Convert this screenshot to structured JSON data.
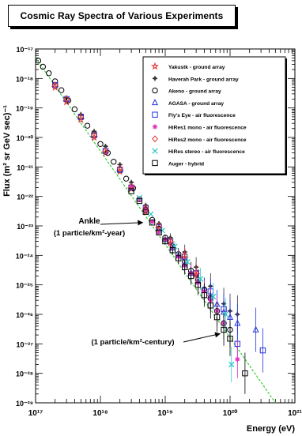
{
  "chart_data": {
    "type": "scatter",
    "title": "Cosmic Ray Spectra of Various Experiments",
    "xlabel": "Energy (eV)",
    "ylabel": "Flux (m² sr GeV sec)⁻¹",
    "x_scale": "log",
    "y_scale": "log",
    "xlim": [
      1e+17,
      1e+21
    ],
    "ylim": [
      1e-29,
      1e-17
    ],
    "x_tick_labels": [
      "10¹⁷",
      "10¹⁸",
      "10¹⁹",
      "10²⁰",
      "10²¹"
    ],
    "y_tick_labels": [
      "10⁻¹⁷",
      "10⁻¹⁸",
      "10⁻¹⁹",
      "10⁻²⁰",
      "10⁻²¹",
      "10⁻²²",
      "10⁻²³",
      "10⁻²⁴",
      "10⁻²⁵",
      "10⁻²⁶",
      "10⁻²⁷",
      "10⁻²⁸",
      "10⁻²⁹"
    ],
    "legend_position": "top-right",
    "grid": false,
    "reference_line": {
      "style": "dashed",
      "color": "#33cc33",
      "points": [
        [
          1e+17,
          5e-18
        ],
        [
          5e+20,
          1e-29
        ]
      ]
    },
    "annotations": [
      {
        "lines": [
          "Ankle",
          "(1 particle/km²-year)"
        ],
        "arrow_to": [
          4.5e+18,
          1.3e-23
        ]
      },
      {
        "lines": [
          "(1 particle/km²-century)"
        ],
        "arrow_to": [
          7e+19,
          2.2e-27
        ]
      }
    ],
    "series": [
      {
        "name": "Yakustk - ground array",
        "marker": "star",
        "color": "#e03030",
        "points": [
          [
            2e+17,
            5e-19
          ],
          [
            3e+17,
            1.6e-19
          ],
          [
            5e+17,
            4e-20
          ],
          [
            8e+17,
            1e-20
          ],
          [
            1.2e+18,
            3e-21
          ],
          [
            2e+18,
            7e-22
          ],
          [
            3e+18,
            1.8e-22
          ],
          [
            5e+18,
            3e-23
          ],
          [
            8e+18,
            8e-24
          ],
          [
            1.2e+19,
            2.6e-24
          ],
          [
            2e+19,
            8e-25
          ],
          [
            3e+19,
            2.2e-25
          ],
          [
            5e+19,
            4e-26
          ]
        ]
      },
      {
        "name": "Haverah Park - ground array",
        "marker": "cross",
        "color": "#333333",
        "points": [
          [
            3e+17,
            2.2e-19
          ],
          [
            5e+17,
            6e-20
          ],
          [
            8e+17,
            1.6e-20
          ],
          [
            1.2e+18,
            5e-21
          ],
          [
            2e+18,
            1.2e-21
          ],
          [
            3e+18,
            3e-22
          ],
          [
            5e+18,
            5e-23
          ],
          [
            8e+18,
            1.2e-23
          ],
          [
            1.2e+19,
            4e-24
          ],
          [
            2e+19,
            1.3e-24
          ],
          [
            3e+19,
            4e-25
          ],
          [
            5e+19,
            9e-26
          ],
          [
            8e+19,
            2.3e-26
          ],
          [
            1e+20,
            1.3e-26
          ],
          [
            1.3e+20,
            1e-26
          ]
        ]
      },
      {
        "name": "Akeno - ground array",
        "marker": "circle",
        "color": "#000000",
        "points": [
          [
            1.1e+17,
            4e-18
          ],
          [
            1.3e+17,
            2.5e-18
          ],
          [
            1.6e+17,
            1.5e-18
          ],
          [
            2e+17,
            8e-19
          ],
          [
            2.5e+17,
            4e-19
          ],
          [
            3.2e+17,
            1.8e-19
          ],
          [
            4e+17,
            9e-20
          ],
          [
            5e+17,
            5e-20
          ],
          [
            6.3e+17,
            2.5e-20
          ],
          [
            8e+17,
            1.2e-20
          ],
          [
            1e+18,
            6e-21
          ],
          [
            1.3e+18,
            3e-21
          ],
          [
            1.6e+18,
            1.5e-21
          ],
          [
            2e+18,
            8e-22
          ],
          [
            2.5e+18,
            4e-22
          ],
          [
            3.2e+18,
            1.9e-22
          ],
          [
            4e+18,
            8e-23
          ],
          [
            5e+18,
            3.5e-23
          ],
          [
            6.3e+18,
            1.6e-23
          ],
          [
            8e+18,
            8e-24
          ],
          [
            1e+19,
            4e-24
          ],
          [
            1.3e+19,
            2e-24
          ],
          [
            1.6e+19,
            1.1e-24
          ],
          [
            2e+19,
            6e-25
          ],
          [
            2.5e+19,
            3e-25
          ],
          [
            3.2e+19,
            1.5e-25
          ],
          [
            4e+19,
            7e-26
          ],
          [
            5e+19,
            3.5e-26
          ],
          [
            6.3e+19,
            1.3e-26
          ],
          [
            8e+19,
            5e-27
          ],
          [
            1e+20,
            3e-27
          ]
        ]
      },
      {
        "name": "AGASA - ground array",
        "marker": "triangle",
        "color": "#2233dd",
        "points": [
          [
            1e+19,
            3.5e-24
          ],
          [
            1.3e+19,
            1.8e-24
          ],
          [
            1.6e+19,
            1e-24
          ],
          [
            2e+19,
            5e-25
          ],
          [
            2.5e+19,
            2.5e-25
          ],
          [
            3.2e+19,
            1.3e-25
          ],
          [
            4e+19,
            7e-26
          ],
          [
            5e+19,
            4e-26
          ],
          [
            6.3e+19,
            2.2e-26
          ],
          [
            8e+19,
            1.2e-26
          ],
          [
            1e+20,
            8e-27
          ],
          [
            1.3e+20,
            5e-27
          ],
          [
            2.5e+20,
            3e-27
          ]
        ]
      },
      {
        "name": "Fly's Eye - air fluorescence",
        "marker": "square-open",
        "color": "#2233dd",
        "points": [
          [
            2e+17,
            6e-19
          ],
          [
            3e+17,
            2e-19
          ],
          [
            5e+17,
            5e-20
          ],
          [
            8e+17,
            1.2e-20
          ],
          [
            1.2e+18,
            3.5e-21
          ],
          [
            2e+18,
            8e-22
          ],
          [
            3e+18,
            2e-22
          ],
          [
            5e+18,
            4e-23
          ],
          [
            8e+18,
            9e-24
          ],
          [
            1.2e+19,
            3e-24
          ],
          [
            2e+19,
            9e-25
          ],
          [
            3e+19,
            2.5e-25
          ],
          [
            5e+19,
            6e-26
          ],
          [
            8e+19,
            1.5e-26
          ],
          [
            1.3e+20,
            1e-27
          ],
          [
            3.2e+20,
            6e-28
          ]
        ]
      },
      {
        "name": "HiRes1 mono - air fluorescence",
        "marker": "asterisk",
        "color": "#e030c0",
        "points": [
          [
            3e+18,
            2e-22
          ],
          [
            4e+18,
            8e-23
          ],
          [
            5e+18,
            3.5e-23
          ],
          [
            6.3e+18,
            1.4e-23
          ],
          [
            8e+18,
            6e-24
          ],
          [
            1e+19,
            3.5e-24
          ],
          [
            1.3e+19,
            1.8e-24
          ],
          [
            1.6e+19,
            9e-25
          ],
          [
            2e+19,
            4.5e-25
          ],
          [
            2.5e+19,
            2.5e-25
          ],
          [
            3.2e+19,
            1.2e-25
          ],
          [
            4e+19,
            6e-26
          ],
          [
            5e+19,
            3e-26
          ],
          [
            6.3e+19,
            1.3e-26
          ],
          [
            8e+19,
            5e-27
          ],
          [
            1.3e+20,
            3e-28
          ]
        ]
      },
      {
        "name": "HiRes2 mono - air fluorescence",
        "marker": "diamond",
        "color": "#e03030",
        "points": [
          [
            2e+17,
            6e-19
          ],
          [
            3e+17,
            2e-19
          ],
          [
            5e+17,
            5e-20
          ],
          [
            8e+17,
            1.2e-20
          ],
          [
            1.2e+18,
            3.5e-21
          ],
          [
            2e+18,
            9e-22
          ],
          [
            3e+18,
            2.2e-22
          ],
          [
            5e+18,
            4e-23
          ],
          [
            8e+18,
            1e-23
          ],
          [
            1.2e+19,
            3e-24
          ],
          [
            2e+19,
            1e-24
          ],
          [
            3e+19,
            2.5e-25
          ]
        ]
      },
      {
        "name": "HiRes stereo - air fluorescence",
        "marker": "x",
        "color": "#30c8c8",
        "points": [
          [
            4e+18,
            9e-23
          ],
          [
            6e+18,
            2.5e-23
          ],
          [
            9e+18,
            7e-24
          ],
          [
            1.4e+19,
            2e-24
          ],
          [
            2.2e+19,
            6e-25
          ],
          [
            3.5e+19,
            1.6e-25
          ],
          [
            5.5e+19,
            4e-26
          ],
          [
            8.5e+19,
            1e-26
          ],
          [
            1.05e+20,
            2e-28
          ]
        ]
      },
      {
        "name": "Auger - hybrid",
        "marker": "square-open",
        "color": "#000000",
        "points": [
          [
            3e+18,
            1.5e-22
          ],
          [
            4e+18,
            7e-23
          ],
          [
            5e+18,
            3e-23
          ],
          [
            6.3e+18,
            1.3e-23
          ],
          [
            8e+18,
            6e-24
          ],
          [
            1e+19,
            3e-24
          ],
          [
            1.3e+19,
            1.5e-24
          ],
          [
            1.6e+19,
            8e-25
          ],
          [
            2e+19,
            4e-25
          ],
          [
            2.5e+19,
            2e-25
          ],
          [
            3.2e+19,
            1e-25
          ],
          [
            4e+19,
            4.5e-26
          ],
          [
            5e+19,
            2e-26
          ],
          [
            6.3e+19,
            8e-27
          ],
          [
            8e+19,
            3e-27
          ],
          [
            1e+20,
            1.5e-27
          ],
          [
            1.7e+20,
            1e-28
          ]
        ]
      }
    ]
  }
}
